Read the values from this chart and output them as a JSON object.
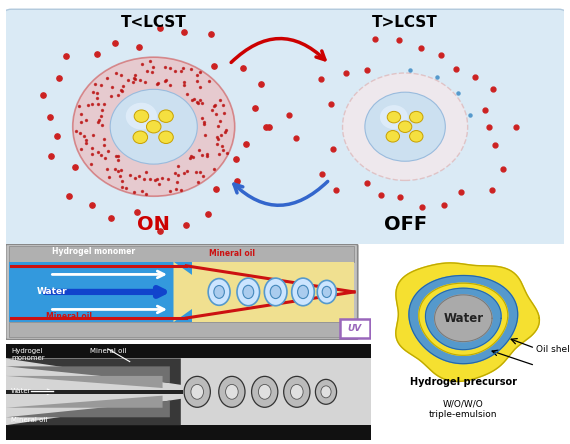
{
  "bg_color_top": "#daeaf5",
  "title_lcst_low": "T<LCST",
  "title_lcst_high": "T>LCST",
  "label_on": "ON",
  "label_off": "OFF",
  "on_color": "#cc0000",
  "off_color": "#000000",
  "dot_color": "#cc2222",
  "yellow_dot_color": "#f5e040",
  "arrow_red_color": "#cc0000",
  "arrow_blue_color": "#3366cc",
  "uv_box_color": "#9966bb",
  "emulsion_water_text": "Water",
  "emulsion_oil_text": "Oil shell",
  "emulsion_hydrogel_text": "Hydrogel precursor",
  "emulsion_triple_text": "W/O/W/O\ntriple-emulsion"
}
